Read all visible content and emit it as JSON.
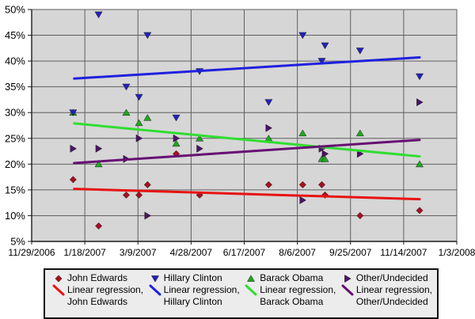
{
  "chart_data": {
    "type": "scatter",
    "title": "",
    "x_axis": {
      "tick_labels": [
        "11/29/2006",
        "1/18/2007",
        "3/9/2007",
        "4/28/2007",
        "6/17/2007",
        "8/6/2007",
        "9/25/2007",
        "11/14/2007",
        "1/3/2008"
      ],
      "range_days": [
        0,
        400
      ],
      "tick_interval_days": 50,
      "grid": true
    },
    "y_axis": {
      "tick_labels": [
        "50%",
        "45%",
        "40%",
        "35%",
        "30%",
        "25%",
        "20%",
        "15%",
        "10%",
        "5%"
      ],
      "min": 5,
      "max": 50,
      "step": 5,
      "unit": "%",
      "grid": true
    },
    "x_days": [
      39,
      63,
      89,
      101,
      109,
      136,
      158,
      223,
      255,
      273,
      276,
      309,
      365
    ],
    "series": [
      {
        "name": "John Edwards",
        "marker": "diamond",
        "marker_color": "#a31220",
        "values": [
          17,
          8,
          14,
          14,
          16,
          22,
          14,
          16,
          16,
          16,
          14,
          10,
          11
        ]
      },
      {
        "name": "Hillary Clinton",
        "marker": "triangle-down",
        "marker_color": "#2222bb",
        "values": [
          30,
          49,
          35,
          33,
          45,
          29,
          38,
          32,
          45,
          40,
          43,
          42,
          37
        ]
      },
      {
        "name": "Barack Obama",
        "marker": "triangle-up",
        "marker_color": "#1fa81f",
        "values": [
          30,
          20,
          30,
          28,
          29,
          24,
          25,
          25,
          26,
          21,
          21,
          26,
          20
        ]
      },
      {
        "name": "Other/Undecided",
        "marker": "triangle-right",
        "marker_color": "#4c1266",
        "values": [
          23,
          23,
          21,
          25,
          10,
          25,
          23,
          27,
          13,
          23,
          22,
          22,
          32
        ]
      }
    ],
    "trendlines": [
      {
        "name": "Linear regression, John Edwards",
        "color": "#e81212",
        "start_day": 40,
        "start_pct": 15.2,
        "end_day": 365,
        "end_pct": 13.2
      },
      {
        "name": "Linear regression, Hillary Clinton",
        "color": "#2020dd",
        "start_day": 40,
        "start_pct": 36.6,
        "end_day": 365,
        "end_pct": 40.7
      },
      {
        "name": "Linear regression, Barack Obama",
        "color": "#30dd30",
        "start_day": 40,
        "start_pct": 27.9,
        "end_day": 365,
        "end_pct": 21.5
      },
      {
        "name": "Linear regression, Other/Undecided",
        "color": "#660f72",
        "start_day": 40,
        "start_pct": 20.2,
        "end_day": 365,
        "end_pct": 24.7
      }
    ],
    "legend": {
      "position": "bottom",
      "line_label_prefix": "Linear regression,",
      "entries": [
        "John Edwards",
        "Hillary Clinton",
        "Barack Obama",
        "Other/Undecided"
      ]
    },
    "colors": {
      "plot_background": "#d6d6d6",
      "gridline": "#5f5f5f",
      "axis": "#1a1a1a",
      "text": "#000000",
      "legend_background": "#ececec"
    }
  }
}
